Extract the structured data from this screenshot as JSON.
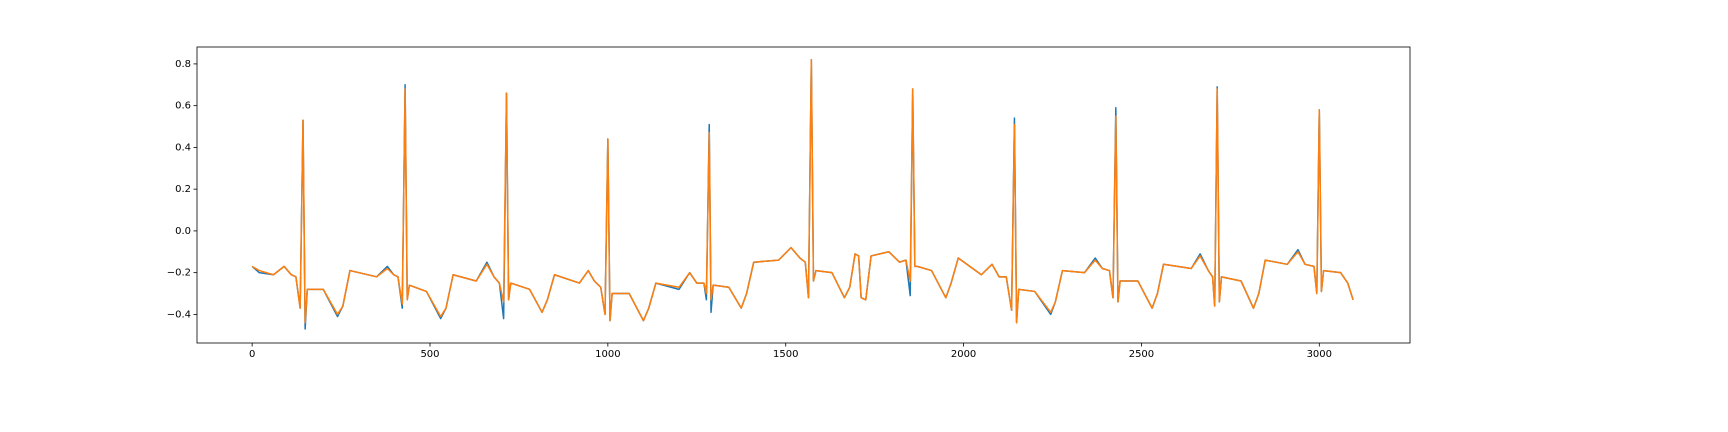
{
  "chart_data": {
    "type": "line",
    "x": [
      0,
      20,
      60,
      90,
      110,
      123,
      135,
      143,
      149,
      155,
      200,
      240,
      255,
      275,
      350,
      380,
      398,
      410,
      422,
      430,
      436,
      442,
      490,
      530,
      545,
      565,
      630,
      660,
      680,
      695,
      707,
      715,
      721,
      727,
      780,
      815,
      830,
      850,
      920,
      945,
      962,
      980,
      992,
      1000,
      1006,
      1012,
      1060,
      1100,
      1115,
      1135,
      1200,
      1230,
      1250,
      1270,
      1277,
      1285,
      1290,
      1296,
      1340,
      1375,
      1390,
      1410,
      1480,
      1515,
      1540,
      1555,
      1564,
      1572,
      1578,
      1585,
      1630,
      1665,
      1680,
      1695,
      1705,
      1712,
      1725,
      1740,
      1790,
      1820,
      1838,
      1850,
      1857,
      1863,
      1870,
      1910,
      1950,
      1965,
      1985,
      2050,
      2080,
      2100,
      2120,
      2135,
      2143,
      2149,
      2155,
      2200,
      2245,
      2258,
      2278,
      2340,
      2370,
      2390,
      2410,
      2420,
      2428,
      2434,
      2440,
      2490,
      2530,
      2545,
      2562,
      2640,
      2665,
      2688,
      2700,
      2706,
      2713,
      2719,
      2725,
      2780,
      2815,
      2830,
      2848,
      2910,
      2940,
      2960,
      2985,
      2993,
      3000,
      3006,
      3012,
      3060,
      3080,
      3095
    ],
    "series": [
      {
        "color": "#1f77b4",
        "values": [
          -0.17,
          -0.2,
          -0.21,
          -0.17,
          -0.21,
          -0.22,
          -0.37,
          0.53,
          -0.47,
          -0.28,
          -0.28,
          -0.41,
          -0.36,
          -0.19,
          -0.22,
          -0.17,
          -0.21,
          -0.22,
          -0.37,
          0.7,
          -0.33,
          -0.26,
          -0.29,
          -0.42,
          -0.37,
          -0.21,
          -0.24,
          -0.15,
          -0.22,
          -0.25,
          -0.42,
          0.66,
          -0.33,
          -0.25,
          -0.28,
          -0.39,
          -0.33,
          -0.21,
          -0.25,
          -0.19,
          -0.24,
          -0.27,
          -0.4,
          0.44,
          -0.43,
          -0.3,
          -0.3,
          -0.43,
          -0.37,
          -0.25,
          -0.28,
          -0.2,
          -0.25,
          -0.25,
          -0.33,
          0.51,
          -0.39,
          -0.26,
          -0.27,
          -0.37,
          -0.3,
          -0.15,
          -0.14,
          -0.08,
          -0.13,
          -0.15,
          -0.32,
          0.82,
          -0.24,
          -0.19,
          -0.2,
          -0.32,
          -0.27,
          -0.11,
          -0.12,
          -0.32,
          -0.33,
          -0.12,
          -0.1,
          -0.15,
          -0.14,
          -0.31,
          0.68,
          -0.17,
          -0.17,
          -0.19,
          -0.32,
          -0.25,
          -0.13,
          -0.21,
          -0.16,
          -0.22,
          -0.22,
          -0.38,
          0.54,
          -0.44,
          -0.28,
          -0.29,
          -0.4,
          -0.34,
          -0.19,
          -0.2,
          -0.13,
          -0.18,
          -0.19,
          -0.32,
          0.59,
          -0.34,
          -0.24,
          -0.24,
          -0.37,
          -0.3,
          -0.16,
          -0.18,
          -0.11,
          -0.19,
          -0.22,
          -0.36,
          0.69,
          -0.34,
          -0.22,
          -0.24,
          -0.37,
          -0.3,
          -0.14,
          -0.16,
          -0.09,
          -0.16,
          -0.17,
          -0.3,
          0.58,
          -0.29,
          -0.19,
          -0.2,
          -0.25,
          -0.33
        ]
      },
      {
        "color": "#ff7f0e",
        "values": [
          -0.17,
          -0.19,
          -0.21,
          -0.17,
          -0.21,
          -0.22,
          -0.37,
          0.53,
          -0.44,
          -0.28,
          -0.28,
          -0.4,
          -0.36,
          -0.19,
          -0.22,
          -0.18,
          -0.21,
          -0.22,
          -0.35,
          0.68,
          -0.33,
          -0.26,
          -0.29,
          -0.41,
          -0.37,
          -0.21,
          -0.24,
          -0.16,
          -0.22,
          -0.25,
          -0.34,
          0.66,
          -0.33,
          -0.25,
          -0.28,
          -0.39,
          -0.33,
          -0.21,
          -0.25,
          -0.19,
          -0.24,
          -0.27,
          -0.4,
          0.44,
          -0.43,
          -0.3,
          -0.3,
          -0.43,
          -0.37,
          -0.25,
          -0.27,
          -0.2,
          -0.25,
          -0.25,
          -0.3,
          0.47,
          -0.33,
          -0.26,
          -0.27,
          -0.37,
          -0.3,
          -0.15,
          -0.14,
          -0.08,
          -0.13,
          -0.15,
          -0.32,
          0.82,
          -0.24,
          -0.19,
          -0.2,
          -0.32,
          -0.27,
          -0.11,
          -0.12,
          -0.32,
          -0.33,
          -0.12,
          -0.1,
          -0.15,
          -0.14,
          -0.24,
          0.68,
          -0.17,
          -0.17,
          -0.19,
          -0.32,
          -0.25,
          -0.13,
          -0.21,
          -0.16,
          -0.22,
          -0.22,
          -0.38,
          0.51,
          -0.44,
          -0.28,
          -0.29,
          -0.39,
          -0.34,
          -0.19,
          -0.2,
          -0.14,
          -0.18,
          -0.19,
          -0.32,
          0.55,
          -0.34,
          -0.24,
          -0.24,
          -0.37,
          -0.3,
          -0.16,
          -0.18,
          -0.12,
          -0.19,
          -0.22,
          -0.36,
          0.68,
          -0.34,
          -0.22,
          -0.24,
          -0.37,
          -0.3,
          -0.14,
          -0.16,
          -0.1,
          -0.16,
          -0.17,
          -0.3,
          0.58,
          -0.29,
          -0.19,
          -0.2,
          -0.25,
          -0.33
        ]
      }
    ],
    "xlim": [
      -155,
      3255
    ],
    "xticks": [
      0,
      500,
      1000,
      1500,
      2000,
      2500,
      3000
    ],
    "ylim": [
      -0.537,
      0.881
    ],
    "yticks": [
      {
        "value": -0.4,
        "label": "−0.4"
      },
      {
        "value": -0.2,
        "label": "−0.2"
      },
      {
        "value": 0,
        "label": "0.0"
      },
      0.2,
      0.4,
      0.6,
      0.8
    ],
    "grid": false
  }
}
